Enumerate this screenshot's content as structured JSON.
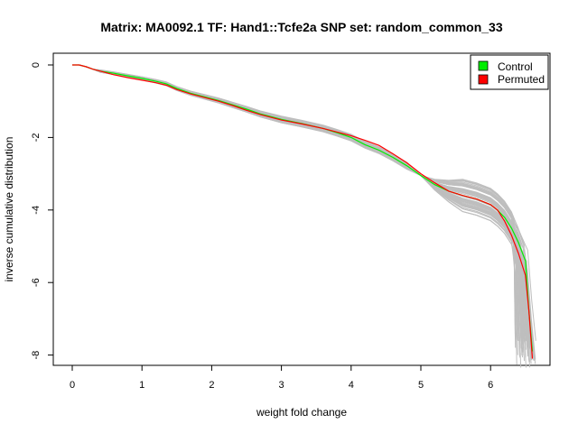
{
  "chart_data": {
    "type": "line",
    "title": "Matrix: MA0092.1 TF: Hand1::Tcfe2a SNP set: random_common_33",
    "xlabel": "weight fold change",
    "ylabel": "inverse cumulative distribution",
    "xlim": [
      -0.1,
      6.7
    ],
    "ylim": [
      -8.2,
      0.3
    ],
    "x_ticks": [
      0,
      1,
      2,
      3,
      4,
      5,
      6
    ],
    "y_ticks": [
      0,
      -2,
      -4,
      -6,
      -8
    ],
    "x_tick_labels": [
      "0",
      "1",
      "2",
      "3",
      "4",
      "5",
      "6"
    ],
    "y_tick_labels": [
      "0",
      "-2",
      "-4",
      "-6",
      "-8"
    ],
    "grid": false,
    "legend": {
      "position": "top-right",
      "entries": [
        {
          "label": "Control",
          "color": "#00ee00"
        },
        {
          "label": "Permuted",
          "color": "#ff0000"
        }
      ]
    },
    "series": [
      {
        "name": "Control",
        "color": "#00ee00",
        "x": [
          0.0,
          0.1,
          0.2,
          0.3,
          0.4,
          0.6,
          0.8,
          1.0,
          1.2,
          1.35,
          1.5,
          1.7,
          1.9,
          2.1,
          2.3,
          2.5,
          2.7,
          3.0,
          3.3,
          3.6,
          3.8,
          4.0,
          4.2,
          4.4,
          4.6,
          4.8,
          5.0,
          5.2,
          5.4,
          5.6,
          5.8,
          6.0,
          6.1,
          6.2,
          6.3,
          6.4,
          6.5,
          6.55,
          6.6
        ],
        "y": [
          0.0,
          0.0,
          -0.05,
          -0.12,
          -0.17,
          -0.23,
          -0.3,
          -0.37,
          -0.45,
          -0.52,
          -0.65,
          -0.78,
          -0.88,
          -0.98,
          -1.1,
          -1.22,
          -1.35,
          -1.5,
          -1.62,
          -1.75,
          -1.87,
          -2.0,
          -2.2,
          -2.35,
          -2.55,
          -2.78,
          -3.05,
          -3.3,
          -3.48,
          -3.6,
          -3.7,
          -3.85,
          -4.0,
          -4.2,
          -4.5,
          -4.9,
          -5.4,
          -6.8,
          -7.9
        ]
      },
      {
        "name": "Permuted",
        "color": "#ff0000",
        "x": [
          0.0,
          0.1,
          0.2,
          0.3,
          0.4,
          0.6,
          0.8,
          1.0,
          1.2,
          1.35,
          1.5,
          1.7,
          1.9,
          2.1,
          2.3,
          2.5,
          2.7,
          3.0,
          3.3,
          3.6,
          3.8,
          4.0,
          4.2,
          4.4,
          4.6,
          4.8,
          5.0,
          5.2,
          5.4,
          5.6,
          5.8,
          6.0,
          6.1,
          6.2,
          6.3,
          6.4,
          6.5,
          6.55,
          6.6
        ],
        "y": [
          0.0,
          0.0,
          -0.05,
          -0.12,
          -0.17,
          -0.27,
          -0.35,
          -0.42,
          -0.49,
          -0.56,
          -0.68,
          -0.8,
          -0.9,
          -1.0,
          -1.12,
          -1.25,
          -1.37,
          -1.52,
          -1.63,
          -1.75,
          -1.85,
          -1.95,
          -2.08,
          -2.22,
          -2.45,
          -2.7,
          -3.0,
          -3.25,
          -3.48,
          -3.6,
          -3.7,
          -3.85,
          -4.0,
          -4.3,
          -4.7,
          -5.2,
          -5.8,
          -6.8,
          -8.1
        ]
      }
    ]
  }
}
